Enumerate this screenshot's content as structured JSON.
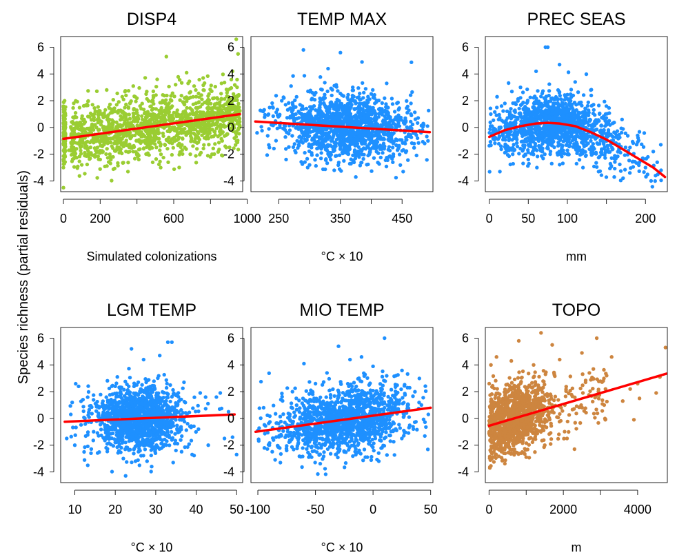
{
  "figure": {
    "ylabel": "Species richness (partial residuals)"
  },
  "chart_data": [
    {
      "type": "scatter",
      "title": "DISP4",
      "xlabel": "Simulated colonizations",
      "ylabel": "Species richness (partial residuals)",
      "xlim": [
        -15,
        975
      ],
      "ylim": [
        -4.8,
        6.8
      ],
      "xticks": [
        0,
        200,
        600,
        1000
      ],
      "xtick_labels": [
        "0",
        "200",
        "600",
        "1000"
      ],
      "xtick_minor": [
        400,
        800
      ],
      "yticks": [
        -4,
        -2,
        0,
        2,
        4,
        6
      ],
      "ytick_labels": [
        "-4",
        "-2",
        "0",
        "2",
        "4",
        "6"
      ],
      "point_color": "#9acd32",
      "line_color": "#ff0000",
      "fit": {
        "x": [
          0,
          960
        ],
        "y": [
          -0.85,
          1.0
        ]
      },
      "points": [
        [
          0,
          1.6
        ],
        [
          0,
          -3.0
        ],
        [
          0,
          -4.5
        ],
        [
          5,
          0.6
        ],
        [
          0,
          -1.2
        ],
        [
          10,
          0.9
        ],
        [
          2,
          1.9
        ],
        [
          0,
          -2.4
        ],
        [
          30,
          -1.7
        ],
        [
          60,
          -2.0
        ],
        [
          100,
          -1.4
        ],
        [
          120,
          -0.6
        ],
        [
          150,
          -1.9
        ],
        [
          180,
          0.0
        ],
        [
          200,
          -2.4
        ],
        [
          220,
          -0.2
        ],
        [
          250,
          0.6
        ],
        [
          270,
          -2.2
        ],
        [
          290,
          1.7
        ],
        [
          300,
          -1.0
        ],
        [
          320,
          2.3
        ],
        [
          340,
          0.2
        ],
        [
          360,
          -1.8
        ],
        [
          380,
          3.1
        ],
        [
          400,
          1.1
        ],
        [
          410,
          -2.4
        ],
        [
          430,
          0.6
        ],
        [
          450,
          2.5
        ],
        [
          470,
          -1.6
        ],
        [
          490,
          1.4
        ],
        [
          510,
          3.6
        ],
        [
          520,
          -0.4
        ],
        [
          540,
          2.0
        ],
        [
          560,
          5.3
        ],
        [
          570,
          -2.6
        ],
        [
          590,
          0.9
        ],
        [
          610,
          3.2
        ],
        [
          630,
          -1.2
        ],
        [
          650,
          1.9
        ],
        [
          670,
          4.1
        ],
        [
          690,
          -2.0
        ],
        [
          700,
          0.3
        ],
        [
          720,
          2.8
        ],
        [
          740,
          -0.9
        ],
        [
          760,
          3.7
        ],
        [
          780,
          1.0
        ],
        [
          800,
          -2.2
        ],
        [
          820,
          2.2
        ],
        [
          840,
          0.1
        ],
        [
          860,
          3.3
        ],
        [
          880,
          -1.4
        ],
        [
          900,
          1.6
        ],
        [
          920,
          4.2
        ],
        [
          940,
          6.6
        ],
        [
          950,
          5.5
        ],
        [
          955,
          0.4
        ],
        [
          930,
          -0.8
        ],
        [
          890,
          2.6
        ],
        [
          850,
          -0.3
        ],
        [
          810,
          1.2
        ]
      ],
      "cloud_n": 1400,
      "cloud_slope": 0.00193,
      "cloud_intercept": -0.85,
      "cloud_sd": 1.15,
      "cloud_xrange": [
        40,
        960
      ]
    },
    {
      "type": "scatter",
      "title": "TEMP MAX",
      "xlabel": "°C × 10",
      "xlim": [
        205,
        500
      ],
      "ylim": [
        -4.8,
        6.8
      ],
      "xticks": [
        250,
        350,
        450
      ],
      "xtick_labels": [
        "250",
        "350",
        "450"
      ],
      "xtick_minor": [
        300,
        400
      ],
      "yticks": [
        -4,
        -2,
        0,
        2,
        4,
        6
      ],
      "ytick_labels": [
        "-4",
        "-2",
        "0",
        "2",
        "4",
        "6"
      ],
      "point_color": "#1e90ff",
      "line_color": "#ff0000",
      "fit": {
        "x": [
          212,
          495
        ],
        "y": [
          0.45,
          -0.35
        ]
      },
      "points": [
        [
          215,
          -0.4
        ],
        [
          225,
          1.2
        ],
        [
          235,
          -1.5
        ],
        [
          245,
          0.3
        ],
        [
          255,
          2.0
        ],
        [
          262,
          -2.4
        ],
        [
          270,
          3.1
        ],
        [
          280,
          -1.0
        ],
        [
          290,
          5.8
        ],
        [
          300,
          -2.8
        ],
        [
          310,
          2.6
        ],
        [
          320,
          -0.5
        ],
        [
          330,
          4.4
        ],
        [
          340,
          -3.2
        ],
        [
          350,
          5.6
        ],
        [
          360,
          -1.6
        ],
        [
          370,
          3.0
        ],
        [
          375,
          -3.7
        ],
        [
          385,
          4.9
        ],
        [
          395,
          -2.1
        ],
        [
          405,
          2.2
        ],
        [
          415,
          -0.7
        ],
        [
          425,
          3.3
        ],
        [
          435,
          -2.6
        ],
        [
          445,
          1.4
        ],
        [
          455,
          -1.2
        ],
        [
          465,
          0.9
        ],
        [
          475,
          -0.8
        ],
        [
          485,
          0.2
        ],
        [
          492,
          -1.0
        ]
      ],
      "cloud_n": 1400,
      "cloud_center": 360,
      "cloud_spread": 55,
      "cloud_sd": 1.2,
      "cloud_xrange": [
        220,
        495
      ]
    },
    {
      "type": "scatter",
      "title": "PREC SEAS",
      "xlabel": "mm",
      "xlim": [
        -5,
        228
      ],
      "ylim": [
        -4.8,
        6.8
      ],
      "xticks": [
        0,
        50,
        100,
        200
      ],
      "xtick_labels": [
        "0",
        "50",
        "100",
        "200"
      ],
      "xtick_minor": [
        150
      ],
      "yticks": [
        -4,
        -2,
        0,
        2,
        4,
        6
      ],
      "ytick_labels": [
        "-4",
        "-2",
        "0",
        "2",
        "4",
        "6"
      ],
      "point_color": "#1e90ff",
      "line_color": "#ff0000",
      "fit": {
        "x": [
          0,
          20,
          40,
          60,
          75,
          90,
          110,
          130,
          150,
          170,
          190,
          210,
          225
        ],
        "y": [
          -0.7,
          -0.2,
          0.1,
          0.3,
          0.35,
          0.3,
          0.1,
          -0.35,
          -0.9,
          -1.6,
          -2.3,
          -3.0,
          -3.7
        ]
      },
      "points": [
        [
          2,
          1.0
        ],
        [
          5,
          -0.3
        ],
        [
          10,
          2.3
        ],
        [
          15,
          -1.4
        ],
        [
          20,
          1.8
        ],
        [
          30,
          -2.0
        ],
        [
          40,
          3.0
        ],
        [
          50,
          -2.4
        ],
        [
          60,
          4.2
        ],
        [
          68,
          -1.8
        ],
        [
          72,
          6.0
        ],
        [
          75,
          6.0
        ],
        [
          80,
          -2.7
        ],
        [
          90,
          4.7
        ],
        [
          100,
          -2.0
        ],
        [
          110,
          3.4
        ],
        [
          120,
          -3.0
        ],
        [
          130,
          2.8
        ],
        [
          140,
          -3.3
        ],
        [
          150,
          1.6
        ],
        [
          160,
          -3.7
        ],
        [
          170,
          0.6
        ],
        [
          180,
          -3.4
        ],
        [
          190,
          -0.6
        ],
        [
          200,
          -3.0
        ],
        [
          210,
          -1.8
        ],
        [
          215,
          -2.6
        ],
        [
          220,
          -3.2
        ]
      ],
      "cloud_n": 1400,
      "cloud_center": 85,
      "cloud_spread": 45,
      "cloud_sd": 1.1,
      "cloud_xrange": [
        0,
        222
      ]
    },
    {
      "type": "scatter",
      "title": "LGM TEMP",
      "xlabel": "°C × 10",
      "xlim": [
        6.5,
        51.5
      ],
      "ylim": [
        -4.8,
        6.8
      ],
      "xticks": [
        10,
        20,
        30,
        40,
        50
      ],
      "xtick_labels": [
        "10",
        "20",
        "30",
        "40",
        "50"
      ],
      "xtick_minor": [],
      "yticks": [
        -4,
        -2,
        0,
        2,
        4,
        6
      ],
      "ytick_labels": [
        "-4",
        "-2",
        "0",
        "2",
        "4",
        "6"
      ],
      "point_color": "#1e90ff",
      "line_color": "#ff0000",
      "fit": {
        "x": [
          7.5,
          49.5
        ],
        "y": [
          -0.25,
          0.3
        ]
      },
      "points": [
        [
          8,
          -1.5
        ],
        [
          9,
          0.3
        ],
        [
          10,
          -2.0
        ],
        [
          12,
          1.4
        ],
        [
          14,
          -2.6
        ],
        [
          16,
          0.8
        ],
        [
          18,
          -1.9
        ],
        [
          20,
          2.4
        ],
        [
          22,
          -3.0
        ],
        [
          24,
          5.2
        ],
        [
          25,
          -3.2
        ],
        [
          27,
          4.4
        ],
        [
          29,
          -3.6
        ],
        [
          31,
          4.7
        ],
        [
          33,
          5.7
        ],
        [
          34,
          5.7
        ],
        [
          35,
          -2.4
        ],
        [
          37,
          2.7
        ],
        [
          39,
          -2.7
        ],
        [
          41,
          1.9
        ],
        [
          43,
          -2.0
        ],
        [
          45,
          1.6
        ],
        [
          47,
          -1.5
        ],
        [
          48,
          0.5
        ],
        [
          49,
          -1.4
        ],
        [
          50,
          -2.7
        ]
      ],
      "cloud_n": 1400,
      "cloud_center": 26,
      "cloud_spread": 6,
      "cloud_sd": 1.15,
      "cloud_xrange": [
        8,
        50
      ]
    },
    {
      "type": "scatter",
      "title": "MIO TEMP",
      "xlabel": "°C × 10",
      "xlim": [
        -106,
        52
      ],
      "ylim": [
        -4.8,
        6.8
      ],
      "xticks": [
        -100,
        -50,
        0,
        50
      ],
      "xtick_labels": [
        "-100",
        "-50",
        "0",
        "50"
      ],
      "xtick_minor": [],
      "yticks": [
        -4,
        -2,
        0,
        2,
        4,
        6
      ],
      "ytick_labels": [
        "-4",
        "-2",
        "0",
        "2",
        "4",
        "6"
      ],
      "point_color": "#1e90ff",
      "line_color": "#ff0000",
      "fit": {
        "x": [
          -102,
          50
        ],
        "y": [
          -1.0,
          0.8
        ]
      },
      "points": [
        [
          -100,
          -0.9
        ],
        [
          -95,
          0.8
        ],
        [
          -90,
          -2.0
        ],
        [
          -85,
          -3.1
        ],
        [
          -80,
          1.4
        ],
        [
          -75,
          -2.4
        ],
        [
          -70,
          2.0
        ],
        [
          -65,
          -1.6
        ],
        [
          -60,
          4.1
        ],
        [
          -55,
          -2.7
        ],
        [
          -50,
          2.6
        ],
        [
          -45,
          -2.2
        ],
        [
          -40,
          3.4
        ],
        [
          -35,
          -2.0
        ],
        [
          -30,
          5.4
        ],
        [
          -25,
          -2.5
        ],
        [
          -20,
          4.4
        ],
        [
          -15,
          -2.3
        ],
        [
          -10,
          4.6
        ],
        [
          -5,
          -2.9
        ],
        [
          0,
          3.9
        ],
        [
          5,
          -3.2
        ],
        [
          10,
          6.0
        ],
        [
          15,
          -1.7
        ],
        [
          20,
          3.2
        ],
        [
          25,
          -1.5
        ],
        [
          30,
          2.3
        ],
        [
          35,
          -0.8
        ],
        [
          42,
          1.0
        ],
        [
          48,
          0.3
        ]
      ],
      "cloud_n": 1400,
      "cloud_center": -25,
      "cloud_spread": 28,
      "cloud_sd": 1.2,
      "cloud_xrange": [
        -100,
        48
      ]
    },
    {
      "type": "scatter",
      "title": "TOPO",
      "xlabel": "m",
      "xlim": [
        -100,
        4800
      ],
      "ylim": [
        -4.8,
        6.8
      ],
      "xticks": [
        0,
        2000,
        4000
      ],
      "xtick_labels": [
        "0",
        "2000",
        "4000"
      ],
      "xtick_minor": [
        1000,
        3000
      ],
      "yticks": [
        -4,
        -2,
        0,
        2,
        4,
        6
      ],
      "ytick_labels": [
        "-4",
        "-2",
        "0",
        "2",
        "4",
        "6"
      ],
      "point_color": "#cd853f",
      "line_color": "#ff0000",
      "fit": {
        "x": [
          0,
          4780
        ],
        "y": [
          -0.55,
          3.35
        ]
      },
      "points": [
        [
          20,
          -3.7
        ],
        [
          50,
          4.0
        ],
        [
          100,
          -2.9
        ],
        [
          200,
          4.6
        ],
        [
          400,
          -2.6
        ],
        [
          600,
          4.3
        ],
        [
          800,
          5.8
        ],
        [
          1000,
          -2.9
        ],
        [
          1200,
          4.0
        ],
        [
          1400,
          6.4
        ],
        [
          1500,
          -2.0
        ],
        [
          1700,
          5.5
        ],
        [
          1900,
          4.4
        ],
        [
          2100,
          -1.5
        ],
        [
          2300,
          -2.3
        ],
        [
          2500,
          4.9
        ],
        [
          2700,
          3.4
        ],
        [
          2900,
          6.0
        ],
        [
          3100,
          1.0
        ],
        [
          3300,
          4.6
        ],
        [
          3600,
          1.3
        ],
        [
          3900,
          -0.1
        ],
        [
          4000,
          2.6
        ],
        [
          4500,
          1.9
        ],
        [
          4600,
          3.1
        ],
        [
          4750,
          5.3
        ],
        [
          4050,
          1.5
        ],
        [
          3800,
          2.2
        ]
      ],
      "cloud_n": 1300,
      "cloud_center": 500,
      "cloud_spread": 500,
      "cloud_sd": 1.2,
      "cloud_xrange": [
        0,
        3200
      ]
    }
  ]
}
